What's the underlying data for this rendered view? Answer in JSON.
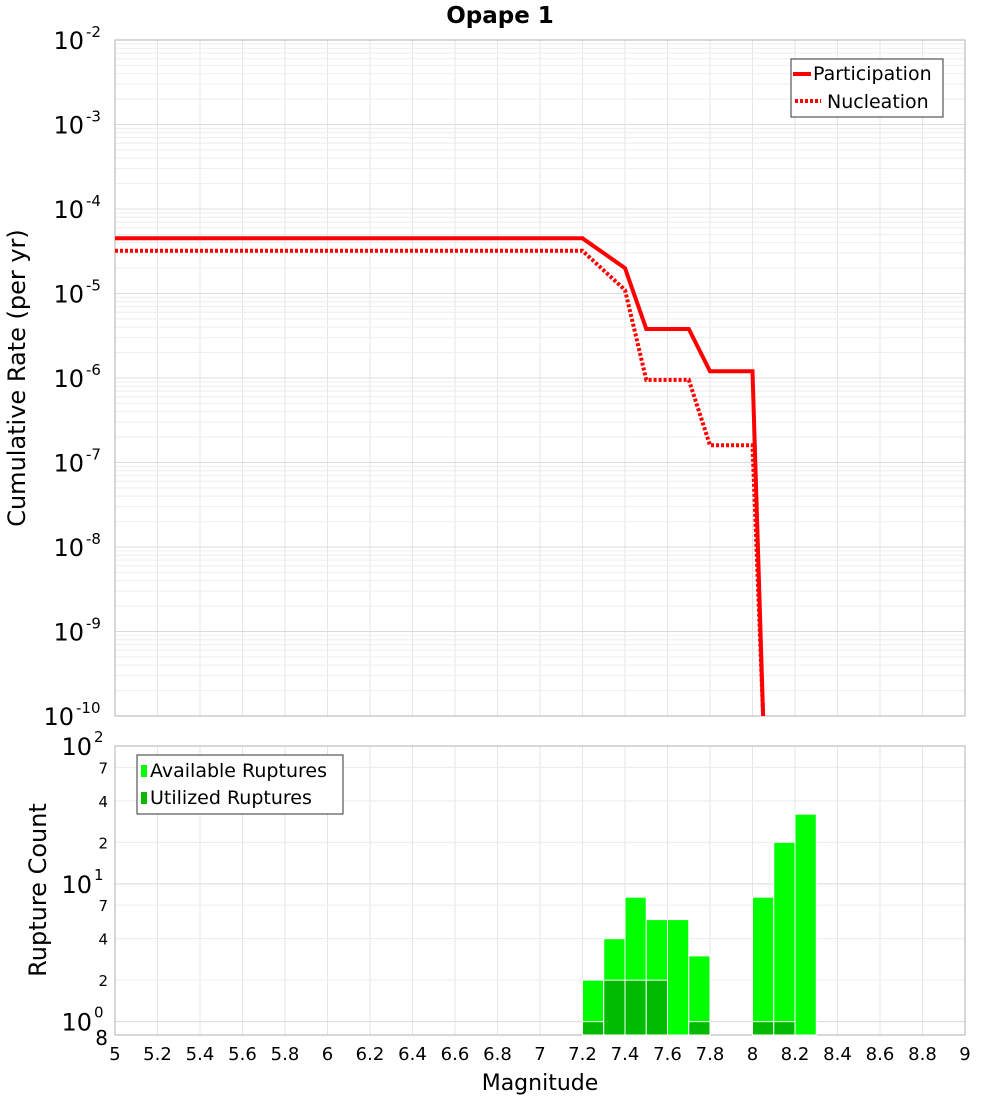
{
  "chart_data": [
    {
      "type": "line",
      "title": "Opape 1",
      "ylabel": "Cumulative Rate (per yr)",
      "yscale": "log",
      "ylim": [
        1e-10,
        0.01
      ],
      "xlim": [
        5,
        9
      ],
      "grid": true,
      "legend_position": "top-right",
      "ytick_labels": [
        {
          "base": "10",
          "exp": "-2"
        },
        {
          "base": "10",
          "exp": "-3"
        },
        {
          "base": "10",
          "exp": "-4"
        },
        {
          "base": "10",
          "exp": "-5"
        },
        {
          "base": "10",
          "exp": "-6"
        },
        {
          "base": "10",
          "exp": "-7"
        },
        {
          "base": "10",
          "exp": "-8"
        },
        {
          "base": "10",
          "exp": "-9"
        },
        {
          "base": "10",
          "exp": "-10"
        }
      ],
      "series": [
        {
          "name": "Participation",
          "color": "#ff0000",
          "style": "solid",
          "x": [
            5.0,
            7.2,
            7.4,
            7.5,
            7.7,
            7.8,
            8.0,
            8.05
          ],
          "y": [
            4.5e-05,
            4.5e-05,
            2e-05,
            3.8e-06,
            3.8e-06,
            1.2e-06,
            1.2e-06,
            1e-10
          ]
        },
        {
          "name": "Nucleation",
          "color": "#ff0000",
          "style": "dotted",
          "x": [
            5.0,
            7.2,
            7.4,
            7.5,
            7.7,
            7.8,
            8.0,
            8.05
          ],
          "y": [
            3.2e-05,
            3.2e-05,
            1.1e-05,
            9.5e-07,
            9.5e-07,
            1.6e-07,
            1.6e-07,
            1e-10
          ]
        }
      ]
    },
    {
      "type": "bar",
      "xlabel": "Magnitude",
      "ylabel": "Rupture Count",
      "yscale": "log",
      "ylim": [
        0.8,
        100
      ],
      "xlim": [
        5,
        9
      ],
      "grid": true,
      "legend_position": "top-left",
      "x_ticks": [
        "5",
        "5.2",
        "5.4",
        "5.6",
        "5.8",
        "6",
        "6.2",
        "6.4",
        "6.6",
        "6.8",
        "7",
        "7.2",
        "7.4",
        "7.6",
        "7.8",
        "8",
        "8.2",
        "8.4",
        "8.6",
        "8.8",
        "9"
      ],
      "y_ticks": [
        {
          "value": 100,
          "base": "10",
          "exp": "2",
          "major": true
        },
        {
          "value": 70,
          "base": "7",
          "exp": "",
          "major": false
        },
        {
          "value": 40,
          "base": "4",
          "exp": "",
          "major": false
        },
        {
          "value": 20,
          "base": "2",
          "exp": "",
          "major": false
        },
        {
          "value": 10,
          "base": "10",
          "exp": "1",
          "major": true
        },
        {
          "value": 7,
          "base": "7",
          "exp": "",
          "major": false
        },
        {
          "value": 4,
          "base": "4",
          "exp": "",
          "major": false
        },
        {
          "value": 2,
          "base": "2",
          "exp": "",
          "major": false
        },
        {
          "value": 1,
          "base": "10",
          "exp": "0",
          "major": true
        },
        {
          "value": 0.8,
          "base": "8",
          "exp": "",
          "major": false
        }
      ],
      "bin_width": 0.1,
      "series": [
        {
          "name": "Available Ruptures",
          "color": "#00ff00",
          "x": [
            7.25,
            7.35,
            7.45,
            7.55,
            7.65,
            7.75,
            8.05,
            8.15,
            8.25
          ],
          "values": [
            2,
            4,
            8,
            5.5,
            5.5,
            3,
            8,
            20,
            32
          ]
        },
        {
          "name": "Utilized Ruptures",
          "color": "#00bb00",
          "x": [
            7.25,
            7.35,
            7.45,
            7.55,
            7.75,
            8.05,
            8.15
          ],
          "values": [
            1,
            2,
            2,
            2,
            1,
            1,
            1
          ]
        }
      ]
    }
  ]
}
